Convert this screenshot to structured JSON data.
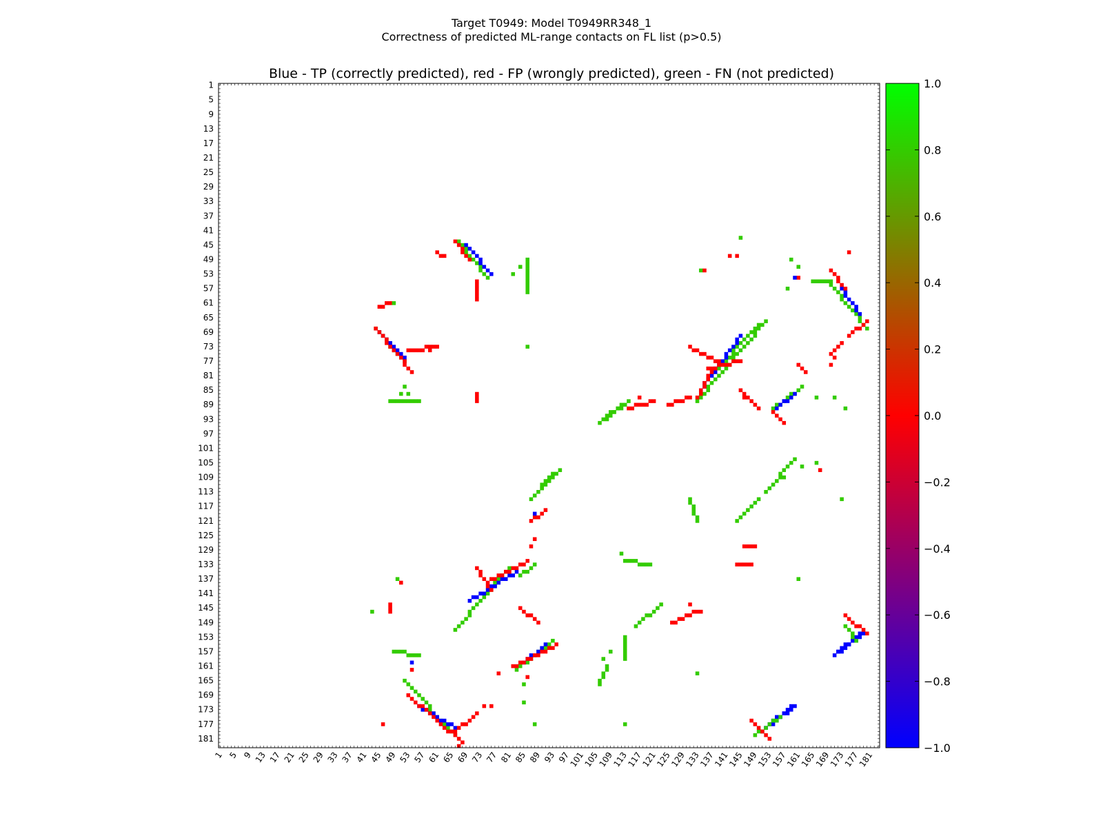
{
  "figure": {
    "title_line1": "Target T0949: Model T0949RR348_1",
    "title_line2": "Correctness of predicted ML-range contacts on FL list (p>0.5)",
    "subtitle": "Blue - TP (correctly predicted), red - FP (wrongly predicted), green - FN (not predicted)"
  },
  "colorbar": {
    "min": -1.0,
    "max": 1.0,
    "ticks": [
      "1.0",
      "0.8",
      "0.6",
      "0.4",
      "0.2",
      "0.0",
      "−0.2",
      "−0.4",
      "−0.6",
      "−0.8",
      "−1.0"
    ],
    "tick_values": [
      1.0,
      0.8,
      0.6,
      0.4,
      0.2,
      0.0,
      -0.2,
      -0.4,
      -0.6,
      -0.8,
      -1.0
    ],
    "colormap": "brg",
    "colors": {
      "low": "#0000ff",
      "mid": "#ff0000",
      "high": "#00ff00"
    }
  },
  "chart_data": {
    "type": "heatmap",
    "title": "Blue - TP (correctly predicted), red - FP (wrongly predicted), green - FN (not predicted)",
    "x_range": [
      1,
      183
    ],
    "y_range": [
      1,
      183
    ],
    "y_inverted": true,
    "tick_step": 4,
    "x_tick_labels": [
      "1",
      "5",
      "9",
      "13",
      "17",
      "21",
      "25",
      "29",
      "33",
      "37",
      "41",
      "45",
      "49",
      "53",
      "57",
      "61",
      "65",
      "69",
      "73",
      "77",
      "81",
      "85",
      "89",
      "93",
      "97",
      "101",
      "105",
      "109",
      "113",
      "117",
      "121",
      "125",
      "129",
      "133",
      "137",
      "141",
      "145",
      "149",
      "153",
      "157",
      "161",
      "165",
      "169",
      "173",
      "177",
      "181"
    ],
    "y_tick_labels": [
      "1",
      "5",
      "9",
      "13",
      "17",
      "21",
      "25",
      "29",
      "33",
      "37",
      "41",
      "45",
      "49",
      "53",
      "57",
      "61",
      "65",
      "69",
      "73",
      "77",
      "81",
      "85",
      "89",
      "93",
      "97",
      "101",
      "105",
      "109",
      "113",
      "117",
      "121",
      "125",
      "129",
      "133",
      "137",
      "141",
      "145",
      "149",
      "153",
      "157",
      "161",
      "165",
      "169",
      "173",
      "177",
      "181"
    ],
    "category_colors": {
      "TP": "#0000ff",
      "FP": "#ff0000",
      "FN": "#33cc00"
    },
    "segments": [
      {
        "cat": "FN",
        "from": [
          67,
          44
        ],
        "to": [
          75,
          54
        ]
      },
      {
        "cat": "TP",
        "from": [
          69,
          45
        ],
        "to": [
          76,
          53
        ]
      },
      {
        "cat": "FP",
        "from": [
          66,
          44
        ],
        "to": [
          70,
          49
        ]
      },
      {
        "cat": "FP",
        "from": [
          72,
          55
        ],
        "to": [
          72,
          60
        ]
      },
      {
        "cat": "FP",
        "from": [
          61,
          47
        ],
        "to": [
          63,
          48
        ]
      },
      {
        "cat": "FN",
        "from": [
          86,
          49
        ],
        "to": [
          86,
          58
        ]
      },
      {
        "cat": "FN",
        "from": [
          44,
          68
        ],
        "to": [
          52,
          77
        ]
      },
      {
        "cat": "TP",
        "from": [
          45,
          69
        ],
        "to": [
          52,
          76
        ]
      },
      {
        "cat": "FP",
        "from": [
          44,
          68
        ],
        "to": [
          54,
          80
        ]
      },
      {
        "cat": "FP",
        "from": [
          53,
          74
        ],
        "to": [
          61,
          73
        ]
      },
      {
        "cat": "FP",
        "from": [
          45,
          62
        ],
        "to": [
          48,
          61
        ]
      },
      {
        "cat": "FN",
        "from": [
          48,
          88
        ],
        "to": [
          56,
          88
        ]
      },
      {
        "cat": "FP",
        "from": [
          72,
          86
        ],
        "to": [
          72,
          88
        ]
      },
      {
        "cat": "FN",
        "from": [
          106,
          94
        ],
        "to": [
          114,
          88
        ]
      },
      {
        "cat": "FN",
        "from": [
          108,
          92
        ],
        "to": [
          112,
          89
        ]
      },
      {
        "cat": "FP",
        "from": [
          114,
          90
        ],
        "to": [
          121,
          88
        ]
      },
      {
        "cat": "FP",
        "from": [
          125,
          89
        ],
        "to": [
          131,
          87
        ]
      },
      {
        "cat": "FN",
        "from": [
          133,
          88
        ],
        "to": [
          152,
          66
        ]
      },
      {
        "cat": "FN",
        "from": [
          136,
          82
        ],
        "to": [
          150,
          67
        ]
      },
      {
        "cat": "TP",
        "from": [
          134,
          85
        ],
        "to": [
          145,
          70
        ]
      },
      {
        "cat": "FP",
        "from": [
          131,
          73
        ],
        "to": [
          139,
          77
        ]
      },
      {
        "cat": "FP",
        "from": [
          133,
          87
        ],
        "to": [
          137,
          80
        ]
      },
      {
        "cat": "FP",
        "from": [
          136,
          79
        ],
        "to": [
          145,
          77
        ]
      },
      {
        "cat": "FP",
        "from": [
          145,
          85
        ],
        "to": [
          150,
          90
        ]
      },
      {
        "cat": "FN",
        "from": [
          154,
          90
        ],
        "to": [
          162,
          84
        ]
      },
      {
        "cat": "TP",
        "from": [
          155,
          90
        ],
        "to": [
          160,
          86
        ]
      },
      {
        "cat": "FP",
        "from": [
          154,
          91
        ],
        "to": [
          157,
          94
        ]
      },
      {
        "cat": "FP",
        "from": [
          161,
          78
        ],
        "to": [
          163,
          80
        ]
      },
      {
        "cat": "FN",
        "from": [
          170,
          56
        ],
        "to": [
          180,
          68
        ]
      },
      {
        "cat": "TP",
        "from": [
          173,
          57
        ],
        "to": [
          178,
          64
        ]
      },
      {
        "cat": "FP",
        "from": [
          170,
          52
        ],
        "to": [
          174,
          57
        ]
      },
      {
        "cat": "FP",
        "from": [
          175,
          70
        ],
        "to": [
          180,
          66
        ]
      },
      {
        "cat": "FP",
        "from": [
          170,
          75
        ],
        "to": [
          173,
          72
        ]
      },
      {
        "cat": "FN",
        "from": [
          165,
          55
        ],
        "to": [
          170,
          55
        ]
      },
      {
        "cat": "FN",
        "from": [
          87,
          115
        ],
        "to": [
          93,
          108
        ]
      },
      {
        "cat": "FN",
        "from": [
          90,
          112
        ],
        "to": [
          95,
          107
        ]
      },
      {
        "cat": "FP",
        "from": [
          87,
          121
        ],
        "to": [
          91,
          118
        ]
      },
      {
        "cat": "FN",
        "from": [
          144,
          121
        ],
        "to": [
          150,
          115
        ]
      },
      {
        "cat": "FN",
        "from": [
          152,
          113
        ],
        "to": [
          160,
          104
        ]
      },
      {
        "cat": "FP",
        "from": [
          146,
          128
        ],
        "to": [
          149,
          128
        ]
      },
      {
        "cat": "FP",
        "from": [
          144,
          133
        ],
        "to": [
          148,
          133
        ]
      },
      {
        "cat": "FN",
        "from": [
          131,
          115
        ],
        "to": [
          133,
          121
        ]
      },
      {
        "cat": "FN",
        "from": [
          113,
          132
        ],
        "to": [
          120,
          133
        ]
      },
      {
        "cat": "FN",
        "from": [
          66,
          151
        ],
        "to": [
          81,
          134
        ]
      },
      {
        "cat": "TP",
        "from": [
          70,
          143
        ],
        "to": [
          83,
          135
        ]
      },
      {
        "cat": "FP",
        "from": [
          72,
          134
        ],
        "to": [
          76,
          140
        ]
      },
      {
        "cat": "FP",
        "from": [
          76,
          137
        ],
        "to": [
          86,
          132
        ]
      },
      {
        "cat": "FN",
        "from": [
          84,
          136
        ],
        "to": [
          88,
          133
        ]
      },
      {
        "cat": "FP",
        "from": [
          84,
          145
        ],
        "to": [
          89,
          149
        ]
      },
      {
        "cat": "FN",
        "from": [
          116,
          150
        ],
        "to": [
          123,
          144
        ]
      },
      {
        "cat": "FN",
        "from": [
          113,
          153
        ],
        "to": [
          113,
          159
        ]
      },
      {
        "cat": "FP",
        "from": [
          126,
          149
        ],
        "to": [
          133,
          146
        ]
      },
      {
        "cat": "FN",
        "from": [
          83,
          162
        ],
        "to": [
          93,
          154
        ]
      },
      {
        "cat": "TP",
        "from": [
          85,
          160
        ],
        "to": [
          91,
          155
        ]
      },
      {
        "cat": "FP",
        "from": [
          82,
          161
        ],
        "to": [
          94,
          155
        ]
      },
      {
        "cat": "FN",
        "from": [
          106,
          166
        ],
        "to": [
          108,
          161
        ]
      },
      {
        "cat": "FN",
        "from": [
          52,
          165
        ],
        "to": [
          66,
          180
        ]
      },
      {
        "cat": "TP",
        "from": [
          56,
          172
        ],
        "to": [
          66,
          178
        ]
      },
      {
        "cat": "FP",
        "from": [
          53,
          169
        ],
        "to": [
          68,
          182
        ]
      },
      {
        "cat": "FP",
        "from": [
          66,
          179
        ],
        "to": [
          71,
          175
        ]
      },
      {
        "cat": "TP",
        "from": [
          151,
          179
        ],
        "to": [
          160,
          172
        ]
      },
      {
        "cat": "TP",
        "from": [
          152,
          178
        ],
        "to": [
          159,
          172
        ]
      },
      {
        "cat": "FN",
        "from": [
          149,
          180
        ],
        "to": [
          156,
          175
        ]
      },
      {
        "cat": "FP",
        "from": [
          148,
          176
        ],
        "to": [
          153,
          181
        ]
      },
      {
        "cat": "TP",
        "from": [
          171,
          158
        ],
        "to": [
          179,
          152
        ]
      },
      {
        "cat": "TP",
        "from": [
          172,
          157
        ],
        "to": [
          178,
          152
        ]
      },
      {
        "cat": "FN",
        "from": [
          174,
          150
        ],
        "to": [
          177,
          154
        ]
      },
      {
        "cat": "FP",
        "from": [
          174,
          147
        ],
        "to": [
          180,
          152
        ]
      },
      {
        "cat": "FN",
        "from": [
          49,
          157
        ],
        "to": [
          56,
          158
        ]
      },
      {
        "cat": "FP",
        "from": [
          48,
          144
        ],
        "to": [
          48,
          146
        ]
      }
    ],
    "points": [
      {
        "cat": "FN",
        "x": 145,
        "y": 43
      },
      {
        "cat": "FP",
        "x": 144,
        "y": 48
      },
      {
        "cat": "FP",
        "x": 142,
        "y": 48
      },
      {
        "cat": "FP",
        "x": 175,
        "y": 47
      },
      {
        "cat": "FN",
        "x": 159,
        "y": 49
      },
      {
        "cat": "FN",
        "x": 161,
        "y": 51
      },
      {
        "cat": "FP",
        "x": 161,
        "y": 54
      },
      {
        "cat": "TP",
        "x": 160,
        "y": 54
      },
      {
        "cat": "FN",
        "x": 158,
        "y": 57
      },
      {
        "cat": "FN",
        "x": 82,
        "y": 53
      },
      {
        "cat": "FN",
        "x": 84,
        "y": 51
      },
      {
        "cat": "FN",
        "x": 49,
        "y": 61
      },
      {
        "cat": "FN",
        "x": 52,
        "y": 84
      },
      {
        "cat": "FN",
        "x": 51,
        "y": 86
      },
      {
        "cat": "FN",
        "x": 53,
        "y": 86
      },
      {
        "cat": "FP",
        "x": 59,
        "y": 74
      },
      {
        "cat": "FN",
        "x": 86,
        "y": 73
      },
      {
        "cat": "FN",
        "x": 134,
        "y": 52
      },
      {
        "cat": "FP",
        "x": 135,
        "y": 52
      },
      {
        "cat": "FN",
        "x": 166,
        "y": 87
      },
      {
        "cat": "FN",
        "x": 171,
        "y": 87
      },
      {
        "cat": "FN",
        "x": 174,
        "y": 90
      },
      {
        "cat": "FN",
        "x": 173,
        "y": 115
      },
      {
        "cat": "FN",
        "x": 161,
        "y": 137
      },
      {
        "cat": "FN",
        "x": 133,
        "y": 163
      },
      {
        "cat": "FN",
        "x": 113,
        "y": 177
      },
      {
        "cat": "FN",
        "x": 88,
        "y": 177
      },
      {
        "cat": "FN",
        "x": 85,
        "y": 171
      },
      {
        "cat": "FP",
        "x": 46,
        "y": 177
      },
      {
        "cat": "FN",
        "x": 43,
        "y": 146
      },
      {
        "cat": "TP",
        "x": 54,
        "y": 160
      },
      {
        "cat": "FP",
        "x": 54,
        "y": 162
      },
      {
        "cat": "FN",
        "x": 50,
        "y": 137
      },
      {
        "cat": "FP",
        "x": 51,
        "y": 138
      },
      {
        "cat": "FP",
        "x": 88,
        "y": 126
      },
      {
        "cat": "FP",
        "x": 87,
        "y": 128
      },
      {
        "cat": "TP",
        "x": 88,
        "y": 119
      },
      {
        "cat": "FN",
        "x": 112,
        "y": 130
      },
      {
        "cat": "FN",
        "x": 109,
        "y": 157
      },
      {
        "cat": "FN",
        "x": 107,
        "y": 159
      },
      {
        "cat": "FP",
        "x": 167,
        "y": 107
      },
      {
        "cat": "FN",
        "x": 162,
        "y": 106
      },
      {
        "cat": "FN",
        "x": 166,
        "y": 105
      },
      {
        "cat": "FN",
        "x": 157,
        "y": 109
      },
      {
        "cat": "FP",
        "x": 131,
        "y": 144
      },
      {
        "cat": "FP",
        "x": 134,
        "y": 146
      },
      {
        "cat": "FP",
        "x": 86,
        "y": 164
      },
      {
        "cat": "FP",
        "x": 78,
        "y": 163
      },
      {
        "cat": "FP",
        "x": 67,
        "y": 183
      },
      {
        "cat": "FP",
        "x": 72,
        "y": 174
      },
      {
        "cat": "FP",
        "x": 74,
        "y": 172
      },
      {
        "cat": "FP",
        "x": 76,
        "y": 172
      },
      {
        "cat": "FN",
        "x": 85,
        "y": 166
      },
      {
        "cat": "FP",
        "x": 170,
        "y": 78
      },
      {
        "cat": "FP",
        "x": 171,
        "y": 76
      },
      {
        "cat": "FP",
        "x": 146,
        "y": 87
      },
      {
        "cat": "FP",
        "x": 117,
        "y": 87
      }
    ]
  }
}
